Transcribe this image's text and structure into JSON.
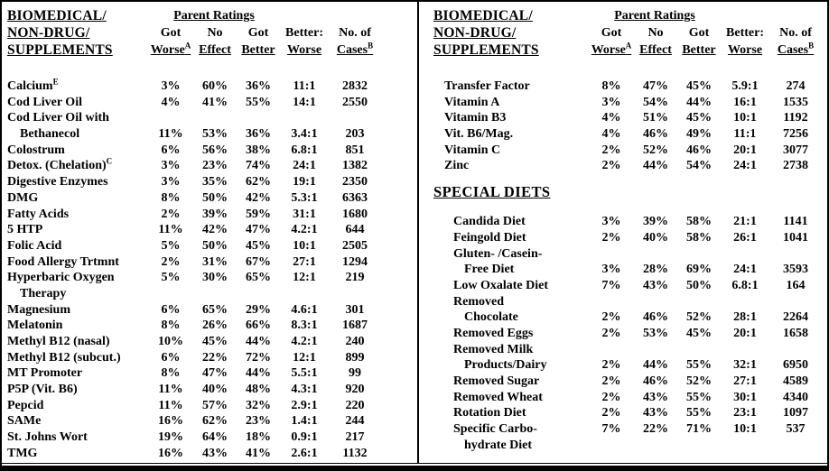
{
  "columns": {
    "parent_ratings": "Parent Ratings",
    "headers": [
      {
        "line1": "Got",
        "line2": "Worse",
        "sup": "A"
      },
      {
        "line1": "No",
        "line2": "Effect"
      },
      {
        "line1": "Got",
        "line2": "Better"
      },
      {
        "line1": "Better:",
        "line2": "Worse"
      },
      {
        "line1": "No. of",
        "line2": "Cases",
        "sup": "B"
      }
    ]
  },
  "left": {
    "title": [
      "BIOMEDICAL/",
      "NON-DRUG/",
      "SUPPLEMENTS"
    ],
    "rows": [
      {
        "name": "Calcium",
        "sup": "E",
        "values": [
          "3%",
          "60%",
          "36%",
          "11:1",
          "2832"
        ]
      },
      {
        "name": "Cod Liver Oil",
        "values": [
          "4%",
          "41%",
          "55%",
          "14:1",
          "2550"
        ]
      },
      {
        "name": "Cod Liver Oil with"
      },
      {
        "name": "Bethanecol",
        "indent": true,
        "values": [
          "11%",
          "53%",
          "36%",
          "3.4:1",
          "203"
        ]
      },
      {
        "name": "Colostrum",
        "values": [
          "6%",
          "56%",
          "38%",
          "6.8:1",
          "851"
        ]
      },
      {
        "name": "Detox. (Chelation)",
        "sup": "C",
        "values": [
          "3%",
          "23%",
          "74%",
          "24:1",
          "1382"
        ]
      },
      {
        "name": "Digestive Enzymes",
        "values": [
          "3%",
          "35%",
          "62%",
          "19:1",
          "2350"
        ]
      },
      {
        "name": "DMG",
        "values": [
          "8%",
          "50%",
          "42%",
          "5.3:1",
          "6363"
        ]
      },
      {
        "name": "Fatty Acids",
        "values": [
          "2%",
          "39%",
          "59%",
          "31:1",
          "1680"
        ]
      },
      {
        "name": "5 HTP",
        "values": [
          "11%",
          "42%",
          "47%",
          "4.2:1",
          "644"
        ]
      },
      {
        "name": "Folic Acid",
        "values": [
          "5%",
          "50%",
          "45%",
          "10:1",
          "2505"
        ]
      },
      {
        "name": "Food Allergy Trtmnt",
        "values": [
          "2%",
          "31%",
          "67%",
          "27:1",
          "1294"
        ]
      },
      {
        "name": "Hyperbaric Oxygen",
        "values": [
          "5%",
          "30%",
          "65%",
          "12:1",
          "219"
        ]
      },
      {
        "name": "Therapy",
        "indent": true
      },
      {
        "name": "Magnesium",
        "values": [
          "6%",
          "65%",
          "29%",
          "4.6:1",
          "301"
        ]
      },
      {
        "name": "Melatonin",
        "values": [
          "8%",
          "26%",
          "66%",
          "8.3:1",
          "1687"
        ]
      },
      {
        "name": "Methyl B12 (nasal)",
        "values": [
          "10%",
          "45%",
          "44%",
          "4.2:1",
          "240"
        ]
      },
      {
        "name": "Methyl B12 (subcut.)",
        "values": [
          "6%",
          "22%",
          "72%",
          "12:1",
          "899"
        ]
      },
      {
        "name": "MT Promoter",
        "values": [
          "8%",
          "47%",
          "44%",
          "5.5:1",
          "99"
        ]
      },
      {
        "name": "P5P (Vit. B6)",
        "values": [
          "11%",
          "40%",
          "48%",
          "4.3:1",
          "920"
        ]
      },
      {
        "name": "Pepcid",
        "values": [
          "11%",
          "57%",
          "32%",
          "2.9:1",
          "220"
        ]
      },
      {
        "name": "SAMe",
        "values": [
          "16%",
          "62%",
          "23%",
          "1.4:1",
          "244"
        ]
      },
      {
        "name": "St. Johns Wort",
        "values": [
          "19%",
          "64%",
          "18%",
          "0.9:1",
          "217"
        ]
      },
      {
        "name": "TMG",
        "values": [
          "16%",
          "43%",
          "41%",
          "2.6:1",
          "1132"
        ]
      }
    ]
  },
  "right": {
    "title": [
      "BIOMEDICAL/",
      "NON-DRUG/",
      "SUPPLEMENTS"
    ],
    "special_diets_title": "SPECIAL DIETS",
    "supplement_rows": [
      {
        "name": "Transfer Factor",
        "values": [
          "8%",
          "47%",
          "45%",
          "5.9:1",
          "274"
        ]
      },
      {
        "name": "Vitamin A",
        "values": [
          "3%",
          "54%",
          "44%",
          "16:1",
          "1535"
        ]
      },
      {
        "name": "Vitamin B3",
        "values": [
          "4%",
          "51%",
          "45%",
          "10:1",
          "1192"
        ]
      },
      {
        "name": "Vit. B6/Mag.",
        "values": [
          "4%",
          "46%",
          "49%",
          "11:1",
          "7256"
        ]
      },
      {
        "name": "Vitamin C",
        "values": [
          "2%",
          "52%",
          "46%",
          "20:1",
          "3077"
        ]
      },
      {
        "name": "Zinc",
        "values": [
          "2%",
          "44%",
          "54%",
          "24:1",
          "2738"
        ]
      }
    ],
    "diet_rows": [
      {
        "name": "Candida Diet",
        "values": [
          "3%",
          "39%",
          "58%",
          "21:1",
          "1141"
        ]
      },
      {
        "name": "Feingold Diet",
        "values": [
          "2%",
          "40%",
          "58%",
          "26:1",
          "1041"
        ]
      },
      {
        "name": "Gluten- /Casein-"
      },
      {
        "name": "Free Diet",
        "indent": true,
        "values": [
          "3%",
          "28%",
          "69%",
          "24:1",
          "3593"
        ]
      },
      {
        "name": "Low Oxalate Diet",
        "values": [
          "7%",
          "43%",
          "50%",
          "6.8:1",
          "164"
        ]
      },
      {
        "name": "Removed"
      },
      {
        "name": "Chocolate",
        "indent": true,
        "values": [
          "2%",
          "46%",
          "52%",
          "28:1",
          "2264"
        ]
      },
      {
        "name": "Removed Eggs",
        "values": [
          "2%",
          "53%",
          "45%",
          "20:1",
          "1658"
        ]
      },
      {
        "name": "Removed Milk"
      },
      {
        "name": "Products/Dairy",
        "indent": true,
        "values": [
          "2%",
          "44%",
          "55%",
          "32:1",
          "6950"
        ]
      },
      {
        "name": "Removed Sugar",
        "values": [
          "2%",
          "46%",
          "52%",
          "27:1",
          "4589"
        ]
      },
      {
        "name": "Removed Wheat",
        "values": [
          "2%",
          "43%",
          "55%",
          "30:1",
          "4340"
        ]
      },
      {
        "name": "Rotation Diet",
        "values": [
          "2%",
          "43%",
          "55%",
          "23:1",
          "1097"
        ]
      },
      {
        "name": "Specific Carbo-",
        "values": [
          "7%",
          "22%",
          "71%",
          "10:1",
          "537"
        ]
      },
      {
        "name": "hydrate Diet",
        "indent": true
      }
    ]
  }
}
